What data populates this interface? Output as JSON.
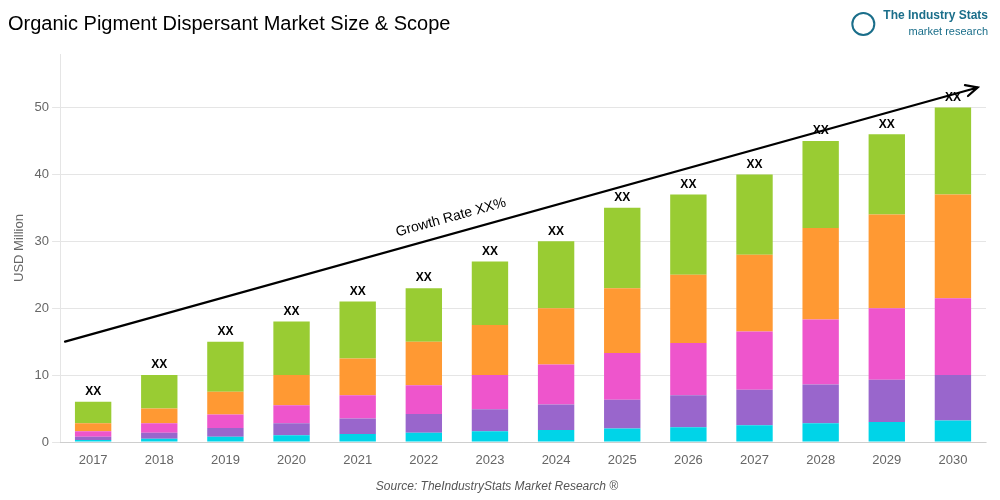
{
  "chart_data": {
    "type": "bar",
    "title": "Organic Pigment Dispersant Market Size & Scope",
    "ylabel": "USD Million",
    "source": "Source: TheIndustryStats Market Research ®",
    "logo": [
      "The Industry Stats",
      "market research"
    ],
    "categories": [
      "2017",
      "2018",
      "2019",
      "2020",
      "2021",
      "2022",
      "2023",
      "2024",
      "2025",
      "2026",
      "2027",
      "2028",
      "2029",
      "2030"
    ],
    "series": [
      {
        "color": "#00d4e8",
        "values": [
          0.3,
          0.5,
          0.8,
          1.0,
          1.2,
          1.4,
          1.6,
          1.8,
          2.0,
          2.2,
          2.5,
          2.8,
          3.0,
          3.2
        ]
      },
      {
        "color": "#9966cc",
        "values": [
          0.5,
          0.9,
          1.3,
          1.8,
          2.3,
          2.8,
          3.3,
          3.8,
          4.3,
          4.8,
          5.3,
          5.8,
          6.3,
          6.8
        ]
      },
      {
        "color": "#ee55cc",
        "values": [
          0.8,
          1.4,
          2.0,
          2.7,
          3.5,
          4.3,
          5.1,
          6.0,
          7.0,
          7.8,
          8.7,
          9.7,
          10.7,
          11.5
        ]
      },
      {
        "color": "#ff9933",
        "values": [
          1.2,
          2.2,
          3.4,
          4.5,
          5.5,
          6.5,
          7.5,
          8.4,
          9.7,
          10.2,
          11.5,
          13.7,
          14.0,
          15.5
        ]
      },
      {
        "color": "#99cc33",
        "values": [
          3.2,
          5.0,
          7.5,
          8.0,
          8.5,
          8.0,
          9.5,
          10.0,
          12.0,
          12.0,
          12.0,
          13.0,
          12.0,
          13.0
        ]
      }
    ],
    "stacked": true,
    "ylim": [
      0,
      58
    ],
    "yticks": [
      0,
      10,
      20,
      30,
      40,
      50
    ],
    "grid": true,
    "annotations": [
      {
        "text": "XX",
        "x": "2017"
      },
      {
        "text": "XX",
        "x": "2018"
      },
      {
        "text": "XX",
        "x": "2019"
      },
      {
        "text": "XX",
        "x": "2020"
      },
      {
        "text": "XX",
        "x": "2021"
      },
      {
        "text": "XX",
        "x": "2022"
      },
      {
        "text": "XX",
        "x": "2023"
      },
      {
        "text": "XX",
        "x": "2024"
      },
      {
        "text": "XX",
        "x": "2025"
      },
      {
        "text": "XX",
        "x": "2026"
      },
      {
        "text": "XX",
        "x": "2027"
      },
      {
        "text": "XX",
        "x": "2028"
      },
      {
        "text": "XX",
        "x": "2029"
      },
      {
        "text": "XX",
        "x": "2030"
      },
      {
        "text": "Growth Rate XX%",
        "arrow": [
          15,
          53
        ]
      }
    ]
  }
}
